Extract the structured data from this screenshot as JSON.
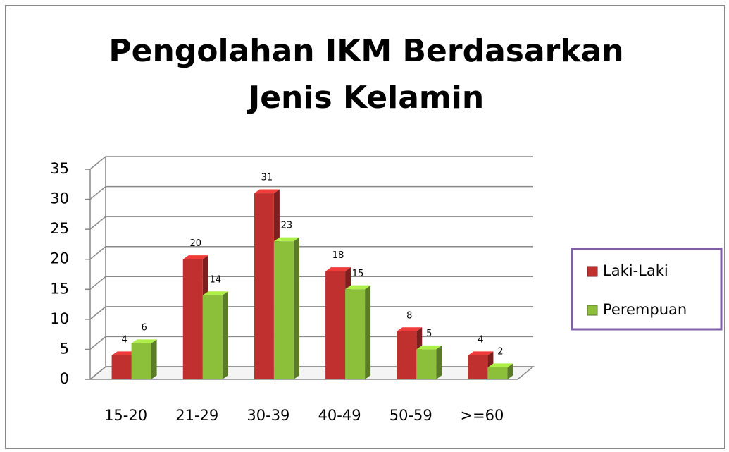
{
  "chart_data": {
    "type": "bar",
    "title": "Pengolahan IKM Berdasarkan Jenis Kelamin",
    "categories": [
      "15-20",
      "21-29",
      "30-39",
      "40-49",
      "50-59",
      ">=60"
    ],
    "series": [
      {
        "name": "Laki-Laki",
        "color": "#c0302e",
        "values": [
          4,
          20,
          31,
          18,
          8,
          4
        ]
      },
      {
        "name": "Perempuan",
        "color": "#8cbf3a",
        "values": [
          6,
          14,
          23,
          15,
          5,
          2
        ]
      }
    ],
    "ylim": [
      0,
      35
    ],
    "yticks": [
      0,
      5,
      10,
      15,
      20,
      25,
      30,
      35
    ],
    "grid": true,
    "legend": "right"
  }
}
